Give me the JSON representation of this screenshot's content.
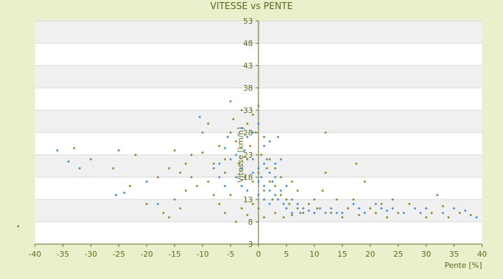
{
  "chart_data": {
    "type": "scatter",
    "title": "VITESSE vs PENTE",
    "xlabel": "Pente [%]",
    "ylabel": "Vitesse [km/h]",
    "xlim": [
      -40,
      40
    ],
    "ylim": [
      3,
      53
    ],
    "x_ticks": [
      -40,
      -35,
      -30,
      -25,
      -20,
      -15,
      -10,
      -5,
      0,
      5,
      10,
      15,
      20,
      25,
      30,
      35,
      40
    ],
    "y_ticks": [
      3,
      8,
      13,
      18,
      23,
      28,
      33,
      38,
      43,
      48,
      53
    ],
    "grid": true,
    "colors": {
      "background": "#eaf0cc",
      "band_light": "#ffffff",
      "band_dark": "#f0f0f0",
      "axis": "#5a6a1a",
      "series_a": "#3a8fd8",
      "series_b": "#8a8a1a"
    },
    "series": [
      {
        "values": [
          [
            -36,
            24
          ],
          [
            -32,
            20
          ],
          [
            -34,
            21.5
          ],
          [
            -25,
            24
          ],
          [
            -25.5,
            14
          ],
          [
            -24,
            14.5
          ],
          [
            -20,
            17
          ],
          [
            -18,
            12
          ],
          [
            -15,
            13
          ],
          [
            -10.5,
            31.5
          ],
          [
            -7,
            21
          ],
          [
            -6,
            24.5
          ],
          [
            -5.5,
            27
          ],
          [
            -5,
            35
          ],
          [
            -5,
            22
          ],
          [
            -4,
            23
          ],
          [
            -3,
            20
          ],
          [
            -3,
            16
          ],
          [
            -2.5,
            24
          ],
          [
            -2,
            15
          ],
          [
            -1,
            22
          ],
          [
            -1,
            19
          ],
          [
            0,
            20
          ],
          [
            0,
            17
          ],
          [
            0.5,
            18
          ],
          [
            1,
            21
          ],
          [
            1,
            16
          ],
          [
            1.5,
            22
          ],
          [
            2,
            19
          ],
          [
            2,
            15
          ],
          [
            2.5,
            17
          ],
          [
            3,
            14
          ],
          [
            3,
            21
          ],
          [
            3.5,
            27
          ],
          [
            3.5,
            13
          ],
          [
            4,
            15
          ],
          [
            4.5,
            12
          ],
          [
            5,
            16
          ],
          [
            5,
            11
          ],
          [
            6,
            13
          ],
          [
            6,
            10
          ],
          [
            7,
            12
          ],
          [
            7.5,
            10
          ],
          [
            8,
            11
          ],
          [
            9,
            10.5
          ],
          [
            10,
            10
          ],
          [
            11,
            11
          ],
          [
            12,
            10
          ],
          [
            13,
            11
          ],
          [
            14,
            10
          ],
          [
            15,
            10
          ],
          [
            16,
            11
          ],
          [
            17,
            12
          ],
          [
            18,
            11
          ],
          [
            19,
            10
          ],
          [
            20,
            11
          ],
          [
            21,
            12
          ],
          [
            22,
            11
          ],
          [
            23,
            10.5
          ],
          [
            24,
            11
          ],
          [
            26,
            10
          ],
          [
            28,
            11
          ],
          [
            29,
            10
          ],
          [
            30,
            11
          ],
          [
            32,
            14
          ],
          [
            33,
            10
          ],
          [
            35,
            11
          ],
          [
            37,
            10.5
          ],
          [
            39,
            9
          ],
          [
            -8,
            20
          ],
          [
            -7,
            18
          ],
          [
            -6,
            16
          ],
          [
            -4,
            18
          ],
          [
            -2,
            27
          ],
          [
            -1,
            28
          ],
          [
            0,
            30
          ],
          [
            1,
            25
          ],
          [
            2,
            26
          ],
          [
            -3,
            29
          ],
          [
            4,
            22
          ],
          [
            3,
            18
          ],
          [
            2,
            12
          ],
          [
            1,
            13
          ],
          [
            0,
            14
          ]
        ]
      },
      {
        "values": [
          [
            -43,
            7
          ],
          [
            -33,
            24.5
          ],
          [
            -30,
            22
          ],
          [
            -26,
            20
          ],
          [
            -23,
            16
          ],
          [
            -22,
            23
          ],
          [
            -20,
            12
          ],
          [
            -18,
            18
          ],
          [
            -17,
            10
          ],
          [
            -16,
            9
          ],
          [
            -16,
            20
          ],
          [
            -14,
            11
          ],
          [
            -13,
            15
          ],
          [
            -12,
            23
          ],
          [
            -12,
            18
          ],
          [
            -11,
            16
          ],
          [
            -10,
            28
          ],
          [
            -10,
            23.5
          ],
          [
            -9,
            30
          ],
          [
            -9,
            17
          ],
          [
            -8,
            14
          ],
          [
            -8,
            21
          ],
          [
            -7,
            12
          ],
          [
            -6,
            19
          ],
          [
            -6,
            10
          ],
          [
            -5,
            14
          ],
          [
            -4.5,
            31
          ],
          [
            -4,
            26
          ],
          [
            -4,
            8
          ],
          [
            -3.5,
            21
          ],
          [
            -3,
            33
          ],
          [
            -3,
            11
          ],
          [
            -2.5,
            18
          ],
          [
            -2,
            22
          ],
          [
            -2,
            9.5
          ],
          [
            -1.5,
            25
          ],
          [
            -1,
            17
          ],
          [
            -1,
            12
          ],
          [
            -0.5,
            28
          ],
          [
            0,
            34
          ],
          [
            0,
            19
          ],
          [
            0,
            11
          ],
          [
            0.5,
            23
          ],
          [
            1,
            15
          ],
          [
            1,
            9
          ],
          [
            1.5,
            20
          ],
          [
            2,
            17
          ],
          [
            2.5,
            13
          ],
          [
            3,
            16
          ],
          [
            3,
            10
          ],
          [
            4,
            14
          ],
          [
            4.5,
            9
          ],
          [
            5,
            13
          ],
          [
            5.5,
            12
          ],
          [
            6,
            9.5
          ],
          [
            7,
            11
          ],
          [
            8,
            10
          ],
          [
            9,
            12
          ],
          [
            10,
            13
          ],
          [
            10.5,
            11
          ],
          [
            11.5,
            15
          ],
          [
            12,
            19
          ],
          [
            12,
            28
          ],
          [
            13,
            10
          ],
          [
            14,
            13
          ],
          [
            15,
            9
          ],
          [
            16,
            11
          ],
          [
            17,
            13
          ],
          [
            17.5,
            21
          ],
          [
            18,
            9.5
          ],
          [
            19,
            17
          ],
          [
            20,
            11
          ],
          [
            21,
            10
          ],
          [
            22,
            12
          ],
          [
            23,
            9
          ],
          [
            24,
            13
          ],
          [
            25,
            10
          ],
          [
            27,
            12
          ],
          [
            30,
            9
          ],
          [
            31,
            10
          ],
          [
            33,
            11.5
          ],
          [
            34,
            9
          ],
          [
            36,
            10
          ],
          [
            38,
            9.5
          ],
          [
            -15,
            24
          ],
          [
            -14,
            19
          ],
          [
            -13,
            21
          ],
          [
            -7,
            25
          ],
          [
            -6,
            22
          ],
          [
            -5,
            28
          ],
          [
            -2,
            30
          ],
          [
            -1,
            32
          ],
          [
            1,
            27
          ],
          [
            2,
            22
          ],
          [
            3,
            20
          ],
          [
            4,
            18
          ],
          [
            6,
            17
          ],
          [
            7,
            15
          ]
        ]
      }
    ]
  }
}
